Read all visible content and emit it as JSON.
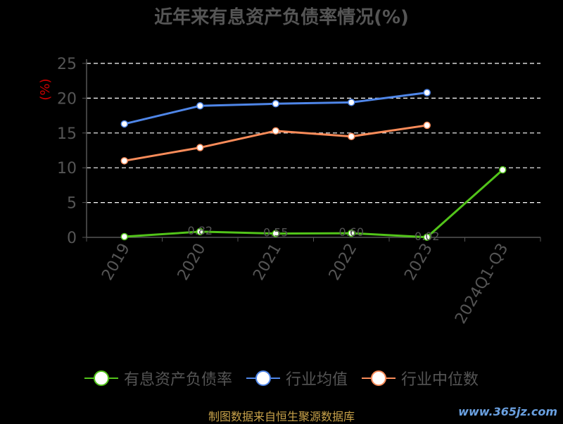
{
  "header": {
    "title": "近年来有息资产负债率情况(%)"
  },
  "chart_data": {
    "type": "line",
    "title": "近年来有息资产负债率情况(%)",
    "ylabel": "(%)",
    "xlabel": "",
    "categories": [
      "2019",
      "2020",
      "2021",
      "2022",
      "2023",
      "2024Q1-Q3"
    ],
    "ylim": [
      0,
      25
    ],
    "yticks": [
      0,
      5,
      10,
      15,
      20,
      25
    ],
    "grid": "horizontal-dashed",
    "legend_position": "bottom",
    "series": [
      {
        "name": "有息资产负债率",
        "color": "#52c41a",
        "values": [
          0.1,
          0.82,
          0.55,
          0.6,
          0.02,
          9.7
        ],
        "point_labels": [
          "",
          "0.82",
          "0.55",
          "0.60",
          "0.02",
          ""
        ]
      },
      {
        "name": "行业均值",
        "color": "#4f86e8",
        "values": [
          16.3,
          18.9,
          19.2,
          19.4,
          20.8,
          null
        ]
      },
      {
        "name": "行业中位数",
        "color": "#fa8c5a",
        "values": [
          11.0,
          12.9,
          15.3,
          14.5,
          16.1,
          null
        ]
      }
    ]
  },
  "footer": {
    "source": "制图数据来自恒生聚源数据库",
    "watermark": "www.365jz.com"
  },
  "colors": {
    "background": "#000000",
    "axis_text": "#555555",
    "ylabel": "#cc0000",
    "grid": "#ffffff"
  }
}
